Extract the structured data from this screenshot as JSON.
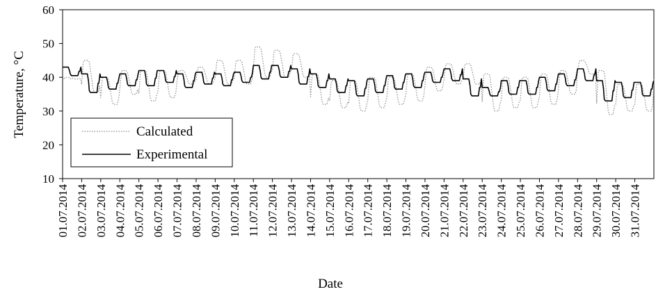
{
  "chart_data": {
    "type": "line",
    "title": "",
    "xlabel": "Date",
    "ylabel": "Temperature, °C",
    "ylim": [
      10,
      60
    ],
    "yticks": [
      10,
      20,
      30,
      40,
      50,
      60
    ],
    "xlim": [
      1,
      32
    ],
    "xtick_labels": [
      "01.07.2014",
      "02.07.2014",
      "03.07.2014",
      "04.07.2014",
      "05.07.2014",
      "06.07.2014",
      "07.07.2014",
      "08.07.2014",
      "09.07.2014",
      "10.07.2014",
      "11.07.2014",
      "12.07.2014",
      "13.07.2014",
      "14.07.2014",
      "15.07.2014",
      "16.07.2014",
      "17.07.2014",
      "18.07.2014",
      "19.07.2014",
      "20.07.2014",
      "21.07.2014",
      "22.07.2014",
      "23.07.2014",
      "24.07.2014",
      "25.07.2014",
      "26.07.2014",
      "27.07.2014",
      "28.07.2014",
      "29.07.2014",
      "30.07.2014",
      "31.07.2014"
    ],
    "grid": false,
    "legend": {
      "position": "lower-left"
    },
    "series": [
      {
        "name": "Calculated",
        "style": "dotted",
        "color": "#888888",
        "daily_max": [
          40,
          45,
          40,
          42,
          42,
          42,
          42,
          43,
          45,
          45,
          49,
          48,
          47,
          41,
          39,
          39,
          40,
          40,
          41,
          43,
          44,
          44,
          41,
          40,
          40,
          41,
          42,
          45,
          42,
          38,
          38
        ],
        "daily_min": [
          39.5,
          35.5,
          32,
          35,
          33,
          34,
          38,
          38,
          38,
          38,
          40,
          40,
          40,
          32,
          31,
          30,
          31,
          32,
          33,
          36,
          38,
          38,
          30,
          31,
          31,
          32,
          35,
          41,
          29,
          30,
          30
        ],
        "end_value": 39.5
      },
      {
        "name": "Experimental",
        "style": "solid",
        "color": "#000000",
        "daily_max": [
          43,
          41,
          40,
          41,
          42,
          42,
          41,
          41.5,
          41,
          41.5,
          43.5,
          43.5,
          42.5,
          41,
          39.5,
          39,
          39.5,
          40.5,
          41,
          41.5,
          42.5,
          39.5,
          37,
          39,
          39,
          40,
          41,
          42.5,
          39,
          38.5,
          38.5
        ],
        "daily_min": [
          40.5,
          35.5,
          36.5,
          37.5,
          37.5,
          38.5,
          37,
          38,
          37.5,
          38.5,
          39.5,
          40,
          38,
          37,
          35.5,
          34.5,
          35.5,
          36.5,
          37,
          38.5,
          39,
          34.5,
          34.5,
          35,
          35,
          36,
          37.5,
          39,
          33,
          34,
          34.5
        ],
        "end_value": 39
      }
    ]
  }
}
